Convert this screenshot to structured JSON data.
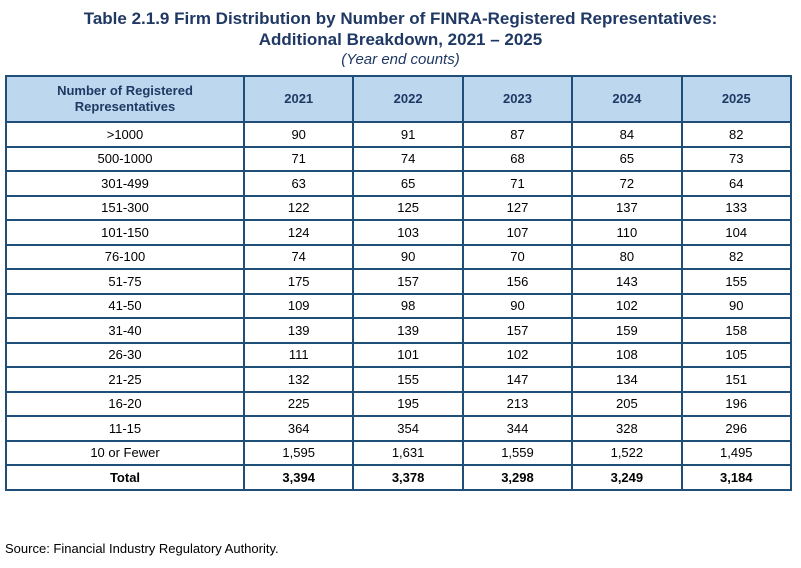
{
  "title_line1": "Table 2.1.9 Firm Distribution by Number of FINRA-Registered Representatives:",
  "title_line2": "Additional Breakdown, 2021 – 2025",
  "subtitle": "(Year end counts)",
  "columns": [
    "Number of Registered Representatives",
    "2021",
    "2022",
    "2023",
    "2024",
    "2025"
  ],
  "rows": [
    {
      "label": ">1000",
      "values": [
        "90",
        "91",
        "87",
        "84",
        "82"
      ]
    },
    {
      "label": "500-1000",
      "values": [
        "71",
        "74",
        "68",
        "65",
        "73"
      ]
    },
    {
      "label": "301-499",
      "values": [
        "63",
        "65",
        "71",
        "72",
        "64"
      ]
    },
    {
      "label": "151-300",
      "values": [
        "122",
        "125",
        "127",
        "137",
        "133"
      ]
    },
    {
      "label": "101-150",
      "values": [
        "124",
        "103",
        "107",
        "110",
        "104"
      ]
    },
    {
      "label": "76-100",
      "values": [
        "74",
        "90",
        "70",
        "80",
        "82"
      ]
    },
    {
      "label": "51-75",
      "values": [
        "175",
        "157",
        "156",
        "143",
        "155"
      ]
    },
    {
      "label": "41-50",
      "values": [
        "109",
        "98",
        "90",
        "102",
        "90"
      ]
    },
    {
      "label": "31-40",
      "values": [
        "139",
        "139",
        "157",
        "159",
        "158"
      ]
    },
    {
      "label": "26-30",
      "values": [
        "111",
        "101",
        "102",
        "108",
        "105"
      ]
    },
    {
      "label": "21-25",
      "values": [
        "132",
        "155",
        "147",
        "134",
        "151"
      ]
    },
    {
      "label": "16-20",
      "values": [
        "225",
        "195",
        "213",
        "205",
        "196"
      ]
    },
    {
      "label": "11-15",
      "values": [
        "364",
        "354",
        "344",
        "328",
        "296"
      ]
    },
    {
      "label": "10 or Fewer",
      "values": [
        "1,595",
        "1,631",
        "1,559",
        "1,522",
        "1,495"
      ]
    }
  ],
  "total": {
    "label": "Total",
    "values": [
      "3,394",
      "3,378",
      "3,298",
      "3,249",
      "3,184"
    ]
  },
  "source": "Source: Financial Industry Regulatory Authority."
}
